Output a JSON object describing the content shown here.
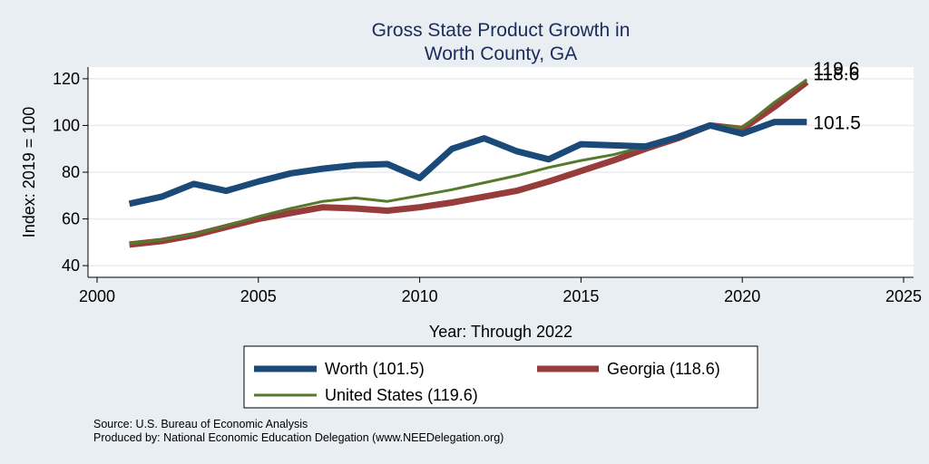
{
  "chart_data": {
    "type": "line",
    "title": [
      "Gross State Product Growth in",
      "Worth County, GA"
    ],
    "xlabel": "Year: Through 2022",
    "ylabel": "Index: 2019 = 100",
    "xlim": [
      2000,
      2025
    ],
    "ylim": [
      35,
      125
    ],
    "xticks": [
      2000,
      2005,
      2010,
      2015,
      2020,
      2025
    ],
    "yticks": [
      40,
      60,
      80,
      100,
      120
    ],
    "grid": true,
    "x": [
      2001,
      2002,
      2003,
      2004,
      2005,
      2006,
      2007,
      2008,
      2009,
      2010,
      2011,
      2012,
      2013,
      2014,
      2015,
      2016,
      2017,
      2018,
      2019,
      2020,
      2021,
      2022
    ],
    "series": [
      {
        "name": "Worth",
        "legend_label": "Worth  (101.5)",
        "end_label": "101.5",
        "color": "#1b4a78",
        "style": "thick",
        "values": [
          66.5,
          69.5,
          75,
          72,
          76,
          79.5,
          81.5,
          83,
          83.5,
          77.5,
          90,
          94.5,
          89,
          85.5,
          92,
          91.5,
          91,
          95,
          100,
          96.5,
          101.5,
          101.5
        ]
      },
      {
        "name": "Georgia",
        "legend_label": "Georgia (118.6)",
        "end_label": "118.6",
        "color": "#963c3a",
        "style": "thick",
        "values": [
          49,
          50.5,
          53,
          56.5,
          60,
          62.5,
          65,
          64.5,
          63.5,
          65,
          67,
          69.5,
          72,
          76,
          80.5,
          85,
          90,
          94.5,
          100,
          98.5,
          108,
          118.6
        ]
      },
      {
        "name": "United States",
        "legend_label": "United States (119.6)",
        "end_label": "119.6",
        "color": "#557a2e",
        "style": "thin",
        "values": [
          49.5,
          51,
          53.5,
          57,
          61,
          64.5,
          67.5,
          69,
          67.5,
          70,
          72.5,
          75.5,
          78.5,
          82,
          85,
          87.5,
          91,
          95.5,
          100,
          99,
          110,
          119.6
        ]
      }
    ],
    "legend_position": "bottom",
    "source_note": "Source: U.S. Bureau of Economic Analysis",
    "produced_note": "Produced by: National Economic Education Delegation (www.NEEDelegation.org)"
  }
}
